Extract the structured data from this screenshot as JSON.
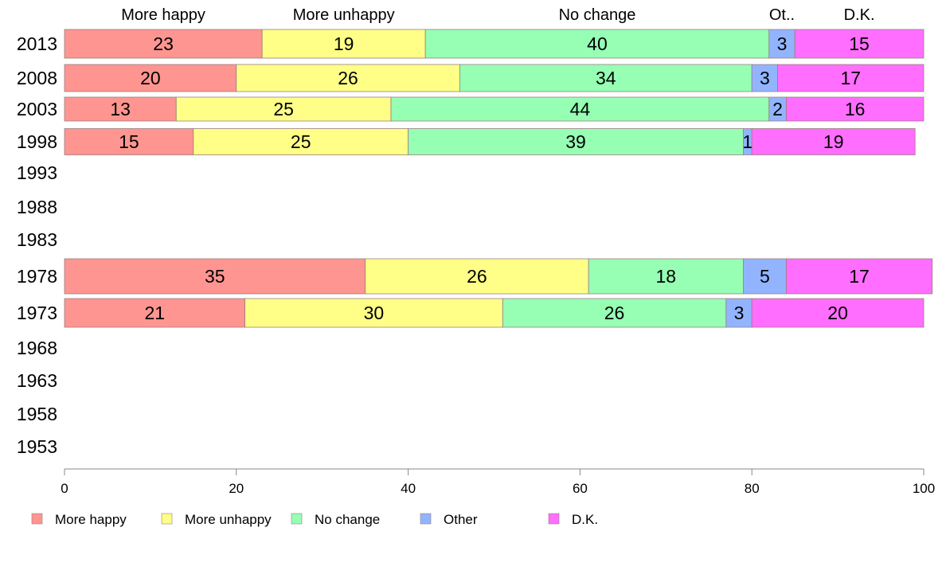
{
  "chart_data": {
    "type": "bar",
    "orientation": "horizontal",
    "stacked": true,
    "categories": [
      "2013",
      "2008",
      "2003",
      "1998",
      "1993",
      "1988",
      "1983",
      "1978",
      "1973",
      "1968",
      "1963",
      "1958",
      "1953"
    ],
    "series": [
      {
        "name": "More happy",
        "color": "#ff9590",
        "values": [
          23,
          20,
          13,
          15,
          null,
          null,
          null,
          35,
          21,
          null,
          null,
          null,
          null
        ]
      },
      {
        "name": "More unhappy",
        "color": "#ffff88",
        "values": [
          19,
          26,
          25,
          25,
          null,
          null,
          null,
          26,
          30,
          null,
          null,
          null,
          null
        ]
      },
      {
        "name": "No change",
        "color": "#96ffb4",
        "values": [
          40,
          34,
          44,
          39,
          null,
          null,
          null,
          18,
          26,
          null,
          null,
          null,
          null
        ]
      },
      {
        "name": "Other",
        "color": "#92b4ff",
        "values": [
          3,
          3,
          2,
          1,
          null,
          null,
          null,
          5,
          3,
          null,
          null,
          null,
          null
        ]
      },
      {
        "name": "D.K.",
        "color": "#ff6eff",
        "values": [
          15,
          17,
          16,
          19,
          null,
          null,
          null,
          17,
          20,
          null,
          null,
          null,
          null
        ]
      }
    ],
    "top_labels": [
      "More happy",
      "More unhappy",
      "No change",
      "Ot..",
      "D.K."
    ],
    "xlim": [
      0,
      100
    ],
    "xticks": [
      "0",
      "20",
      "40",
      "60",
      "80",
      "100"
    ],
    "grid": false,
    "legend_position": "bottom"
  }
}
